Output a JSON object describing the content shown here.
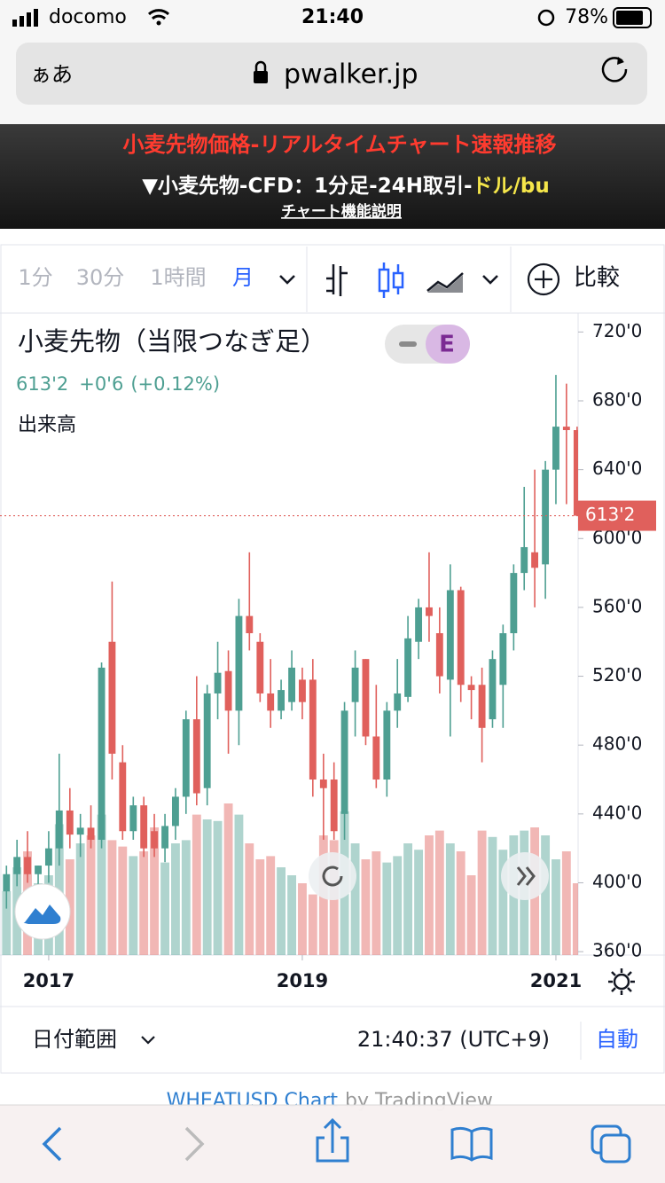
{
  "status_bar": {
    "carrier": "docomo",
    "time": "21:40",
    "battery": "78%"
  },
  "browser": {
    "text_size": "ぁあ",
    "url": "pwalker.jp"
  },
  "banner": {
    "title": "小麦先物価格-リアルタイムチャート速報推移",
    "subtitle": "▼小麦先物-CFD：1分足-24H取引-",
    "subtitle_unit": "ドル/bu",
    "link": "チャート機能説明"
  },
  "toolbar": {
    "intervals": [
      "1分",
      "30分",
      "1時間",
      "月"
    ],
    "compare": "比較"
  },
  "chart_data": {
    "type": "candlestick",
    "title": "小麦先物（当限つなぎ足）",
    "badge": "E",
    "change": "+0'6",
    "change_pct": "(+0.12%)",
    "volume_label": "出来高",
    "up_color": "#4e9f92",
    "down_color": "#e0605c",
    "x": [
      2016.667,
      2016.75,
      2016.833,
      2016.917,
      2017,
      2017.083,
      2017.167,
      2017.25,
      2017.333,
      2017.417,
      2017.5,
      2017.583,
      2017.667,
      2017.75,
      2017.833,
      2017.917,
      2018,
      2018.083,
      2018.167,
      2018.25,
      2018.333,
      2018.417,
      2018.5,
      2018.583,
      2018.667,
      2018.75,
      2018.833,
      2018.917,
      2019,
      2019.083,
      2019.167,
      2019.25,
      2019.333,
      2019.417,
      2019.5,
      2019.583,
      2019.667,
      2019.75,
      2019.833,
      2019.917,
      2020,
      2020.083,
      2020.167,
      2020.25,
      2020.333,
      2020.417,
      2020.5,
      2020.583,
      2020.667,
      2020.75,
      2020.833,
      2020.917,
      2021,
      2021.083,
      2021.167
    ],
    "open": [
      395,
      405,
      415,
      405,
      410,
      420,
      442,
      428,
      432,
      425,
      540,
      470,
      430,
      445,
      430,
      420,
      433,
      450,
      495,
      455,
      510,
      523,
      500,
      555,
      540,
      510,
      500,
      505,
      518,
      518,
      460,
      460,
      440,
      505,
      530,
      485,
      460,
      500,
      508,
      540,
      560,
      545,
      518,
      570,
      515,
      515,
      495,
      515,
      545,
      580,
      592,
      585,
      640,
      665,
      663
    ],
    "high": [
      410,
      425,
      430,
      410,
      430,
      475,
      455,
      440,
      445,
      528,
      575,
      480,
      450,
      450,
      440,
      440,
      455,
      500,
      520,
      515,
      540,
      535,
      565,
      592,
      545,
      530,
      518,
      535,
      525,
      530,
      475,
      470,
      505,
      535,
      530,
      515,
      505,
      530,
      555,
      565,
      592,
      560,
      585,
      572,
      520,
      525,
      535,
      550,
      585,
      630,
      640,
      645,
      695,
      690,
      665
    ],
    "low": [
      385,
      398,
      400,
      395,
      400,
      410,
      420,
      415,
      420,
      420,
      460,
      425,
      425,
      415,
      415,
      412,
      425,
      440,
      445,
      445,
      495,
      475,
      480,
      535,
      505,
      490,
      495,
      500,
      495,
      450,
      425,
      425,
      425,
      485,
      480,
      455,
      450,
      490,
      505,
      530,
      540,
      510,
      485,
      505,
      495,
      470,
      490,
      490,
      535,
      570,
      560,
      565,
      620,
      620,
      613.25
    ],
    "close": [
      405,
      415,
      405,
      410,
      420,
      442,
      428,
      432,
      425,
      525,
      475,
      430,
      445,
      420,
      420,
      433,
      450,
      495,
      452,
      510,
      522,
      500,
      555,
      545,
      510,
      500,
      512,
      525,
      505,
      460,
      455,
      430,
      500,
      525,
      485,
      460,
      500,
      510,
      542,
      560,
      555,
      520,
      570,
      515,
      512,
      490,
      530,
      545,
      580,
      595,
      583,
      640,
      665,
      663,
      613.25
    ],
    "volume": [
      40,
      55,
      65,
      45,
      50,
      82,
      60,
      70,
      75,
      88,
      72,
      68,
      62,
      65,
      80,
      58,
      70,
      72,
      88,
      85,
      84,
      95,
      88,
      70,
      60,
      62,
      55,
      50,
      45,
      38,
      75,
      72,
      90,
      70,
      60,
      65,
      58,
      62,
      70,
      66,
      75,
      78,
      70,
      65,
      50,
      78,
      74,
      66,
      75,
      78,
      80,
      75,
      60,
      65,
      45
    ],
    "volume_lim": [
      0,
      100
    ],
    "xlim": [
      2016.616,
      2021.175
    ],
    "xticks": [
      2017,
      2019,
      2021
    ],
    "ylim": [
      358,
      731
    ],
    "yticks": [
      {
        "value": 720,
        "label": "720'0"
      },
      {
        "value": 680,
        "label": "680'0"
      },
      {
        "value": 640,
        "label": "640'0"
      },
      {
        "value": 600,
        "label": "600'0"
      },
      {
        "value": 560,
        "label": "560'0"
      },
      {
        "value": 520,
        "label": "520'0"
      },
      {
        "value": 480,
        "label": "480'0"
      },
      {
        "value": 440,
        "label": "440'0"
      },
      {
        "value": 400,
        "label": "400'0"
      },
      {
        "value": 360,
        "label": "360'0"
      }
    ],
    "last_price": {
      "value": 613.25,
      "label": "613'2"
    }
  },
  "footer": {
    "date_range": "日付範囲",
    "clock": "21:40:37 (UTC+9)",
    "auto": "自動",
    "credit_link": "WHEATUSD Chart",
    "credit_by": "by TradingView"
  }
}
